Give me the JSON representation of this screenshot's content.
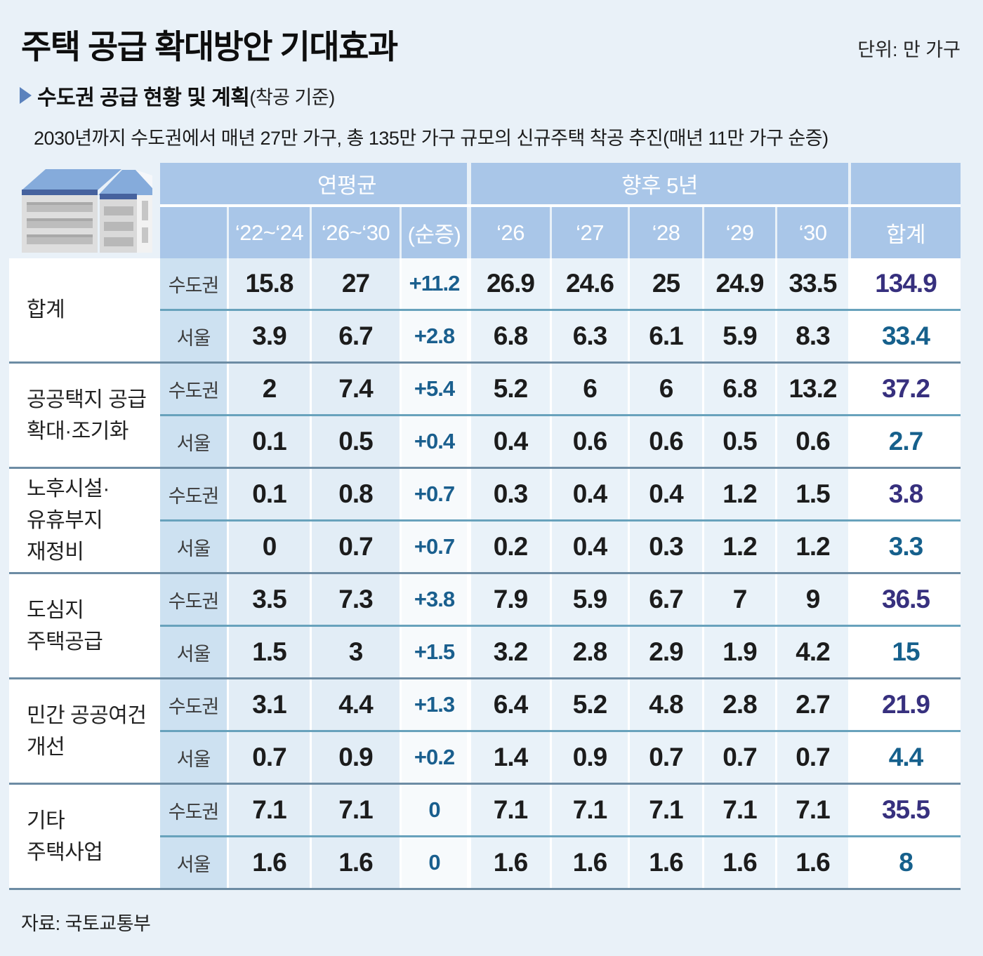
{
  "title": "주택 공급 확대방안 기대효과",
  "unit_label": "단위: 만 가구",
  "section": {
    "title": "수도권 공급 현황 및 계획",
    "suffix": "(착공 기준)"
  },
  "description": "2030년까지 수도권에서 매년 27만 가구, 총 135만 가구 규모의 신규주택 착공 추진(매년 11만 가구 순증)",
  "source": "자료: 국토교통부",
  "colors": {
    "page_bg": "#e9f1f8",
    "header_blue": "#a9c6e8",
    "region_cell": "#cde1f1",
    "data_cell": "#e6f0f8",
    "net_text": "#1a5f8e",
    "total_capital_text": "#37307e",
    "total_seoul_text": "#16608c",
    "group_line": "#6d8ca4",
    "inner_line": "#68a2bc",
    "arrow_blue": "#5b82bd",
    "roof_blue": "#85abdb",
    "roof_band": "#46629e"
  },
  "table": {
    "group_headers": {
      "avg": "연평균",
      "future": "향후 5년"
    },
    "col_headers": [
      "‘22~‘24",
      "‘26~‘30",
      "(순증)",
      "‘26",
      "‘27",
      "‘28",
      "‘29",
      "‘30",
      "합계"
    ],
    "region_labels": [
      "수도권",
      "서울"
    ],
    "groups": [
      {
        "category_lines": [
          "합계"
        ],
        "rows": [
          {
            "region": "수도권",
            "values": [
              "15.8",
              "27",
              "+11.2",
              "26.9",
              "24.6",
              "25",
              "24.9",
              "33.5",
              "134.9"
            ]
          },
          {
            "region": "서울",
            "values": [
              "3.9",
              "6.7",
              "+2.8",
              "6.8",
              "6.3",
              "6.1",
              "5.9",
              "8.3",
              "33.4"
            ]
          }
        ]
      },
      {
        "category_lines": [
          "공공택지 공급",
          "확대·조기화"
        ],
        "rows": [
          {
            "region": "수도권",
            "values": [
              "2",
              "7.4",
              "+5.4",
              "5.2",
              "6",
              "6",
              "6.8",
              "13.2",
              "37.2"
            ]
          },
          {
            "region": "서울",
            "values": [
              "0.1",
              "0.5",
              "+0.4",
              "0.4",
              "0.6",
              "0.6",
              "0.5",
              "0.6",
              "2.7"
            ]
          }
        ]
      },
      {
        "category_lines": [
          "노후시설·",
          "유휴부지",
          "재정비"
        ],
        "rows": [
          {
            "region": "수도권",
            "values": [
              "0.1",
              "0.8",
              "+0.7",
              "0.3",
              "0.4",
              "0.4",
              "1.2",
              "1.5",
              "3.8"
            ]
          },
          {
            "region": "서울",
            "values": [
              "0",
              "0.7",
              "+0.7",
              "0.2",
              "0.4",
              "0.3",
              "1.2",
              "1.2",
              "3.3"
            ]
          }
        ]
      },
      {
        "category_lines": [
          "도심지",
          "주택공급"
        ],
        "rows": [
          {
            "region": "수도권",
            "values": [
              "3.5",
              "7.3",
              "+3.8",
              "7.9",
              "5.9",
              "6.7",
              "7",
              "9",
              "36.5"
            ]
          },
          {
            "region": "서울",
            "values": [
              "1.5",
              "3",
              "+1.5",
              "3.2",
              "2.8",
              "2.9",
              "1.9",
              "4.2",
              "15"
            ]
          }
        ]
      },
      {
        "category_lines": [
          "민간 공공여건",
          "개선"
        ],
        "rows": [
          {
            "region": "수도권",
            "values": [
              "3.1",
              "4.4",
              "+1.3",
              "6.4",
              "5.2",
              "4.8",
              "2.8",
              "2.7",
              "21.9"
            ]
          },
          {
            "region": "서울",
            "values": [
              "0.7",
              "0.9",
              "+0.2",
              "1.4",
              "0.9",
              "0.7",
              "0.7",
              "0.7",
              "4.4"
            ]
          }
        ]
      },
      {
        "category_lines": [
          "기타",
          "주택사업"
        ],
        "rows": [
          {
            "region": "수도권",
            "values": [
              "7.1",
              "7.1",
              "0",
              "7.1",
              "7.1",
              "7.1",
              "7.1",
              "7.1",
              "35.5"
            ]
          },
          {
            "region": "서울",
            "values": [
              "1.6",
              "1.6",
              "0",
              "1.6",
              "1.6",
              "1.6",
              "1.6",
              "1.6",
              "8"
            ]
          }
        ]
      }
    ]
  },
  "chart_data": {
    "type": "table",
    "title": "주택 공급 확대방안 기대효과",
    "subtitle": "수도권 공급 현황 및 계획(착공 기준)",
    "unit": "만 가구",
    "column_groups": [
      "연평균",
      "향후 5년"
    ],
    "columns": [
      "‘22~‘24",
      "‘26~‘30",
      "(순증)",
      "‘26",
      "‘27",
      "‘28",
      "‘29",
      "‘30",
      "합계"
    ],
    "rows": [
      {
        "category": "합계",
        "region": "수도권",
        "values": [
          15.8,
          27,
          11.2,
          26.9,
          24.6,
          25,
          24.9,
          33.5,
          134.9
        ]
      },
      {
        "category": "합계",
        "region": "서울",
        "values": [
          3.9,
          6.7,
          2.8,
          6.8,
          6.3,
          6.1,
          5.9,
          8.3,
          33.4
        ]
      },
      {
        "category": "공공택지 공급 확대·조기화",
        "region": "수도권",
        "values": [
          2,
          7.4,
          5.4,
          5.2,
          6,
          6,
          6.8,
          13.2,
          37.2
        ]
      },
      {
        "category": "공공택지 공급 확대·조기화",
        "region": "서울",
        "values": [
          0.1,
          0.5,
          0.4,
          0.4,
          0.6,
          0.6,
          0.5,
          0.6,
          2.7
        ]
      },
      {
        "category": "노후시설·유휴부지 재정비",
        "region": "수도권",
        "values": [
          0.1,
          0.8,
          0.7,
          0.3,
          0.4,
          0.4,
          1.2,
          1.5,
          3.8
        ]
      },
      {
        "category": "노후시설·유휴부지 재정비",
        "region": "서울",
        "values": [
          0,
          0.7,
          0.7,
          0.2,
          0.4,
          0.3,
          1.2,
          1.2,
          3.3
        ]
      },
      {
        "category": "도심지 주택공급",
        "region": "수도권",
        "values": [
          3.5,
          7.3,
          3.8,
          7.9,
          5.9,
          6.7,
          7,
          9,
          36.5
        ]
      },
      {
        "category": "도심지 주택공급",
        "region": "서울",
        "values": [
          1.5,
          3,
          1.5,
          3.2,
          2.8,
          2.9,
          1.9,
          4.2,
          15
        ]
      },
      {
        "category": "민간 공공여건 개선",
        "region": "수도권",
        "values": [
          3.1,
          4.4,
          1.3,
          6.4,
          5.2,
          4.8,
          2.8,
          2.7,
          21.9
        ]
      },
      {
        "category": "민간 공공여건 개선",
        "region": "서울",
        "values": [
          0.7,
          0.9,
          0.2,
          1.4,
          0.9,
          0.7,
          0.7,
          0.7,
          4.4
        ]
      },
      {
        "category": "기타 주택사업",
        "region": "수도권",
        "values": [
          7.1,
          7.1,
          0,
          7.1,
          7.1,
          7.1,
          7.1,
          7.1,
          35.5
        ]
      },
      {
        "category": "기타 주택사업",
        "region": "서울",
        "values": [
          1.6,
          1.6,
          0,
          1.6,
          1.6,
          1.6,
          1.6,
          1.6,
          8
        ]
      }
    ]
  }
}
